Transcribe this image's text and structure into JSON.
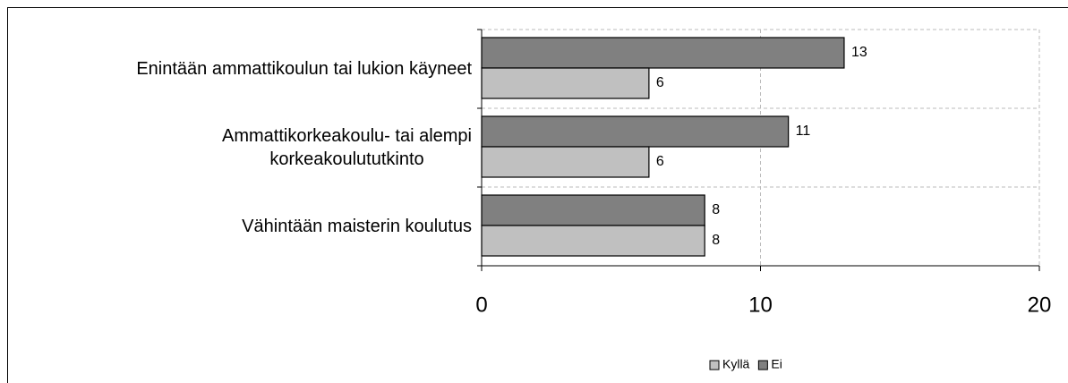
{
  "chart_data": {
    "type": "hbar",
    "categories": [
      "Enintään ammattikoulun tai lukion käyneet",
      "Ammattikorkeakoulu- tai alempi\nkorkeakoulututkinto",
      "Vähintään maisterin koulutus"
    ],
    "series": [
      {
        "name": "Kyllä",
        "color": "#c0c0c0",
        "values": [
          6,
          6,
          8
        ]
      },
      {
        "name": "Ei",
        "color": "#808080",
        "values": [
          13,
          11,
          8
        ]
      }
    ],
    "xlim": [
      0,
      20
    ],
    "xticks": [
      0,
      10,
      20
    ],
    "grid": true,
    "legend": "bottom"
  }
}
